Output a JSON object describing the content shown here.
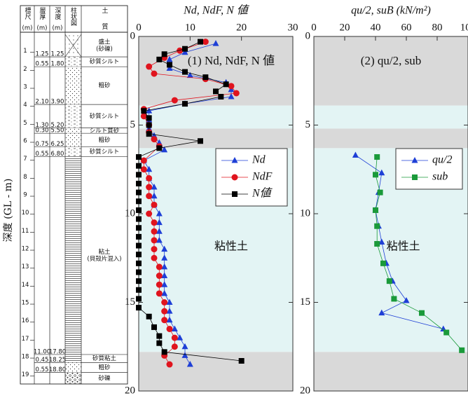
{
  "log": {
    "ylabel": "深度 (GL - m)",
    "headers": [
      {
        "name": "標尺",
        "unit": "(m)"
      },
      {
        "name": "層厚",
        "unit": "(m)"
      },
      {
        "name": "深度",
        "unit": "(m)"
      },
      {
        "name": "柱状図"
      },
      {
        "name": "土質"
      }
    ],
    "scale": [
      1,
      2,
      3,
      4,
      5,
      6,
      7,
      8,
      9,
      10,
      11,
      12,
      13,
      14,
      15,
      16,
      17,
      18,
      19
    ],
    "layers": [
      {
        "thickness": "1.25",
        "depth": "1.25",
        "soil": [
          "盛土",
          "(砂礫)"
        ],
        "pattern": "fill"
      },
      {
        "thickness": "0.55",
        "depth": "1.80",
        "soil": [
          "砂質シルト"
        ],
        "pattern": "silt"
      },
      {
        "thickness": "2.10",
        "depth": "3.90",
        "soil": [
          "粗砂"
        ],
        "pattern": "sand"
      },
      {
        "thickness": "1.30",
        "depth": "5.20",
        "soil": [
          "砂質シルト"
        ],
        "pattern": "silt"
      },
      {
        "thickness": "0.30",
        "depth": "5.50",
        "soil": [
          "シルト質砂"
        ],
        "pattern": "sand"
      },
      {
        "thickness": "0.75",
        "depth": "6.25",
        "soil": [
          "粗砂"
        ],
        "pattern": "sand"
      },
      {
        "thickness": "0.55",
        "depth": "6.80",
        "soil": [
          "砂質シルト"
        ],
        "pattern": "silt"
      },
      {
        "thickness": "11.00",
        "depth": "17.80",
        "soil": [
          "粘土",
          "(貝殻片混入)"
        ],
        "pattern": "clay"
      },
      {
        "thickness": "0.45",
        "depth": "18.25",
        "soil": [
          "砂質粘土"
        ],
        "pattern": "clay"
      },
      {
        "thickness": "0.55",
        "depth": "18.80",
        "soil": [
          "粗砂"
        ],
        "pattern": "sand"
      },
      {
        "soil": [
          "砂礫"
        ],
        "pattern": "gravel"
      }
    ]
  },
  "chart_data": [
    {
      "type": "scatter",
      "title": "Nd, NdF, N 値",
      "xaxis_position": "top",
      "xlim": [
        0,
        30
      ],
      "xticks": [
        0,
        10,
        20,
        30
      ],
      "ylim": [
        20,
        0
      ],
      "yticks": [
        0,
        5,
        10,
        15,
        20
      ],
      "annotations": [
        "(1) Nd, NdF, N 値",
        "粘性土"
      ],
      "bands": [
        {
          "from": 0,
          "to": 3.9,
          "color": "#d9d9d9"
        },
        {
          "from": 3.9,
          "to": 5.2,
          "color": "#e3f4f4"
        },
        {
          "from": 5.2,
          "to": 6.3,
          "color": "#d9d9d9"
        },
        {
          "from": 6.3,
          "to": 17.8,
          "color": "#e3f4f4"
        },
        {
          "from": 17.8,
          "to": 20,
          "color": "#d9d9d9"
        }
      ],
      "legend": "right",
      "series": [
        {
          "name": "Nd",
          "color": "#1e3fd6",
          "marker": "triangle",
          "x": [
            15,
            9,
            6,
            6,
            10,
            17,
            18,
            18,
            9,
            2,
            2,
            2,
            3,
            4,
            5,
            1,
            2,
            2,
            3,
            3,
            3,
            4,
            4,
            4,
            4,
            5,
            5,
            5,
            5,
            5,
            5,
            6,
            6,
            6,
            7,
            8,
            9,
            9,
            10
          ],
          "y": [
            0.4,
            0.9,
            1.3,
            1.8,
            2.2,
            2.6,
            3.0,
            3.4,
            3.8,
            4.2,
            4.7,
            5.2,
            5.6,
            6.0,
            6.4,
            7.0,
            7.5,
            8.0,
            8.5,
            9.0,
            9.5,
            10.0,
            10.5,
            11.0,
            11.5,
            12.0,
            12.5,
            13.0,
            13.5,
            14.0,
            14.5,
            15.0,
            15.5,
            16.0,
            16.5,
            17.0,
            17.5,
            18.0,
            18.5
          ]
        },
        {
          "name": "NdF",
          "color": "#e0141e",
          "marker": "circle",
          "x": [
            13,
            8,
            5,
            2,
            3,
            13,
            18,
            19,
            7,
            1,
            1,
            2,
            2,
            3,
            4,
            1,
            1,
            2,
            2,
            2,
            3,
            2,
            3,
            3,
            3,
            3,
            3,
            4,
            4,
            4,
            4,
            5,
            5,
            5,
            6,
            7,
            7,
            5,
            6
          ],
          "y": [
            0.3,
            0.8,
            1.2,
            1.7,
            2.1,
            2.4,
            2.8,
            3.2,
            3.6,
            4.1,
            4.5,
            5.0,
            5.4,
            5.8,
            6.2,
            7.0,
            7.5,
            8.0,
            8.5,
            9.0,
            9.5,
            10.0,
            10.5,
            11.0,
            11.5,
            12.0,
            12.5,
            13.0,
            13.5,
            14.0,
            14.5,
            15.0,
            15.5,
            16.0,
            16.5,
            17.0,
            17.5,
            18.0,
            18.5
          ]
        },
        {
          "name": "N値",
          "color": "#000000",
          "marker": "square",
          "x": [
            12,
            9,
            5,
            4,
            6,
            9,
            13,
            17,
            15,
            16,
            9,
            1,
            2,
            2,
            2,
            12,
            4,
            0,
            0,
            0,
            0,
            0,
            0,
            0,
            0,
            0,
            0,
            0,
            0,
            0,
            0,
            0,
            0,
            0,
            0,
            2,
            3,
            4,
            4,
            5,
            20
          ],
          "y": [
            0.3,
            0.7,
            1.0,
            1.3,
            1.6,
            2.0,
            2.3,
            2.7,
            3.1,
            3.4,
            3.8,
            4.2,
            4.6,
            5.0,
            5.5,
            5.9,
            6.3,
            6.8,
            7.3,
            7.8,
            8.3,
            8.8,
            9.3,
            9.8,
            10.3,
            10.8,
            11.3,
            11.8,
            12.3,
            12.8,
            13.3,
            13.8,
            14.3,
            14.8,
            15.3,
            15.8,
            16.4,
            16.9,
            17.3,
            17.8,
            18.3
          ]
        }
      ]
    },
    {
      "type": "scatter",
      "title": "qu/2, suB (kN/m²)",
      "xaxis_position": "top",
      "xlim": [
        0,
        100
      ],
      "xticks": [
        0,
        20,
        40,
        60,
        80,
        100
      ],
      "ylim": [
        20,
        0
      ],
      "yticks": [
        0,
        5,
        10,
        15,
        20
      ],
      "annotations": [
        "(2) qu/2, sub",
        "粘性土"
      ],
      "bands": [
        {
          "from": 0,
          "to": 3.9,
          "color": "#d9d9d9"
        },
        {
          "from": 3.9,
          "to": 5.2,
          "color": "#e3f4f4"
        },
        {
          "from": 5.2,
          "to": 6.3,
          "color": "#d9d9d9"
        },
        {
          "from": 6.3,
          "to": 17.8,
          "color": "#e3f4f4"
        },
        {
          "from": 17.8,
          "to": 20,
          "color": "#d9d9d9"
        }
      ],
      "legend": "right",
      "series": [
        {
          "name": "qu/2",
          "color": "#1e3fd6",
          "marker": "triangle",
          "x": [
            27,
            44,
            42,
            40,
            42,
            44,
            47,
            51,
            60,
            44,
            84
          ],
          "y": [
            6.7,
            7.7,
            8.8,
            9.8,
            10.7,
            11.6,
            12.8,
            13.8,
            14.9,
            15.6,
            16.5
          ]
        },
        {
          "name": "sub",
          "color": "#1a9a3a",
          "marker": "square",
          "x": [
            41,
            40,
            43,
            40,
            41,
            41,
            45,
            49,
            52,
            70,
            86,
            96
          ],
          "y": [
            6.8,
            7.8,
            8.8,
            9.8,
            10.7,
            11.7,
            12.8,
            13.8,
            14.8,
            15.6,
            16.7,
            17.7
          ]
        }
      ]
    }
  ]
}
